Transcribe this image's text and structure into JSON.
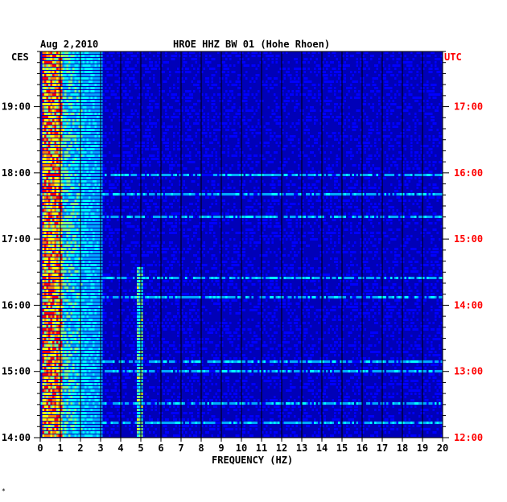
{
  "chart_data": {
    "type": "heatmap",
    "header": {
      "date": "Aug 2,2010",
      "station": "HROE HHZ BW 01 (Hohe Rhoen)"
    },
    "left_tz": "CES",
    "right_tz": "UTC",
    "xlabel": "FREQUENCY (HZ)",
    "x_ticks": [
      "0",
      "1",
      "2",
      "3",
      "4",
      "5",
      "6",
      "7",
      "8",
      "9",
      "10",
      "11",
      "12",
      "13",
      "14",
      "15",
      "16",
      "17",
      "18",
      "19",
      "20"
    ],
    "xlim": [
      0,
      20
    ],
    "left_ticks": [
      "19:00",
      "18:00",
      "17:00",
      "16:00",
      "15:00",
      "14:00"
    ],
    "right_ticks": [
      "17:00",
      "16:00",
      "15:00",
      "14:00",
      "13:00",
      "12:00"
    ],
    "ylim_cest": [
      "14:00",
      "19:50"
    ],
    "colormap": [
      "#00008b",
      "#0000ff",
      "#00aaff",
      "#00ffff",
      "#80ff80",
      "#ffff00",
      "#ff8000",
      "#ff0000"
    ],
    "dominant_bands_hz": [
      [
        0.1,
        1.0
      ],
      [
        1.0,
        3.0
      ],
      [
        4.7,
        5.0
      ]
    ],
    "footnote": "*"
  },
  "colors": {
    "left_axis": "#000000",
    "right_axis": "#ff0000",
    "background": "#0000b8"
  }
}
